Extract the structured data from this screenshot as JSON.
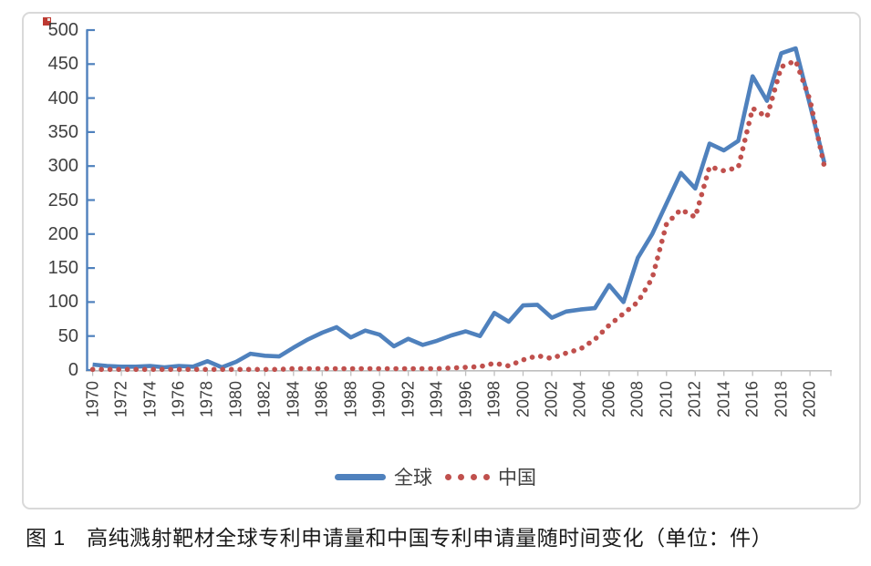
{
  "figure": {
    "caption": "图 1　高纯溅射靶材全球专利申请量和中国专利申请量随时间变化（单位：件）"
  },
  "chart_data": {
    "type": "line",
    "title": "",
    "xlabel": "",
    "ylabel": "",
    "ylim": [
      0,
      500
    ],
    "y_ticks": [
      0,
      50,
      100,
      150,
      200,
      250,
      300,
      350,
      400,
      450,
      500
    ],
    "x_axis_tick_labels": [
      "1970",
      "1972",
      "1974",
      "1976",
      "1978",
      "1980",
      "1982",
      "1984",
      "1986",
      "1988",
      "1990",
      "1992",
      "1994",
      "1996",
      "1998",
      "2000",
      "2002",
      "2004",
      "2006",
      "2008",
      "2010",
      "2012",
      "2014",
      "2016",
      "2018",
      "2020"
    ],
    "grid": false,
    "legend_position": "bottom-center",
    "axis_color": "#4f81bd",
    "x_axis_color": "#bfbfbf",
    "tick_label_color": "#404040",
    "x": [
      1970,
      1971,
      1972,
      1973,
      1974,
      1975,
      1976,
      1977,
      1978,
      1979,
      1980,
      1981,
      1982,
      1983,
      1984,
      1985,
      1986,
      1987,
      1988,
      1989,
      1990,
      1991,
      1992,
      1993,
      1994,
      1995,
      1996,
      1997,
      1998,
      1999,
      2000,
      2001,
      2002,
      2003,
      2004,
      2005,
      2006,
      2007,
      2008,
      2009,
      2010,
      2011,
      2012,
      2013,
      2014,
      2015,
      2016,
      2017,
      2018,
      2019,
      2020,
      2021
    ],
    "series": [
      {
        "name": "全球",
        "color": "#4f81bd",
        "line_style": "solid",
        "values": [
          8,
          6,
          5,
          5,
          6,
          4,
          6,
          5,
          13,
          4,
          12,
          24,
          21,
          20,
          33,
          45,
          55,
          63,
          48,
          58,
          52,
          35,
          46,
          37,
          43,
          51,
          57,
          50,
          84,
          71,
          95,
          96,
          77,
          86,
          89,
          91,
          125,
          100,
          165,
          200,
          245,
          290,
          267,
          333,
          323,
          337,
          432,
          396,
          466,
          473,
          390,
          305
        ]
      },
      {
        "name": "中国",
        "color": "#c0504d",
        "line_style": "dotted",
        "values": [
          1,
          1,
          1,
          1,
          1,
          1,
          1,
          1,
          1,
          1,
          1,
          1,
          1,
          1,
          2,
          2,
          2,
          2,
          2,
          2,
          2,
          2,
          2,
          2,
          2,
          3,
          4,
          5,
          10,
          6,
          15,
          21,
          17,
          25,
          31,
          45,
          66,
          83,
          100,
          135,
          215,
          236,
          225,
          299,
          293,
          298,
          385,
          372,
          446,
          455,
          397,
          300
        ]
      }
    ]
  }
}
